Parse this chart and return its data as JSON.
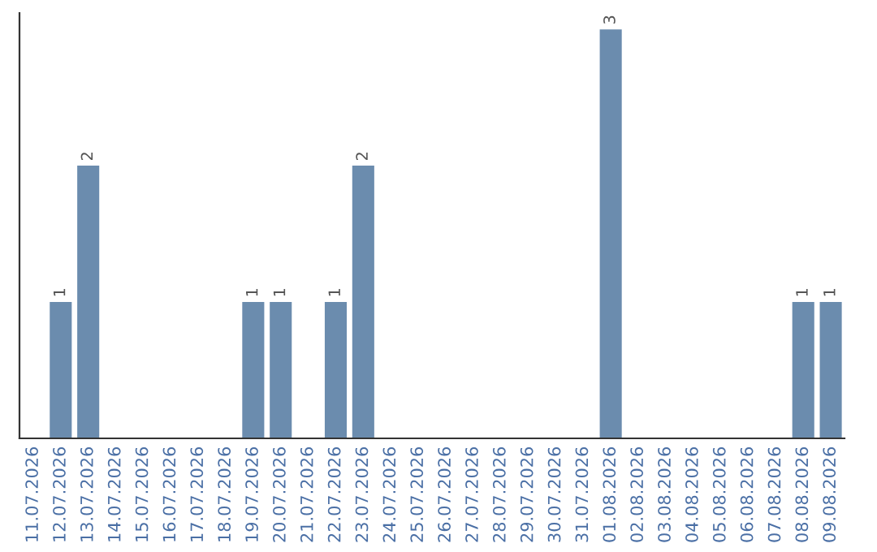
{
  "chart_data": {
    "type": "bar",
    "categories": [
      "11.07.2026",
      "12.07.2026",
      "13.07.2026",
      "14.07.2026",
      "15.07.2026",
      "16.07.2026",
      "17.07.2026",
      "18.07.2026",
      "19.07.2026",
      "20.07.2026",
      "21.07.2026",
      "22.07.2026",
      "23.07.2026",
      "24.07.2026",
      "25.07.2026",
      "26.07.2026",
      "27.07.2026",
      "28.07.2026",
      "29.07.2026",
      "30.07.2026",
      "31.07.2026",
      "01.08.2026",
      "02.08.2026",
      "03.08.2026",
      "04.08.2026",
      "05.08.2026",
      "06.08.2026",
      "07.08.2026",
      "08.08.2026",
      "09.08.2026"
    ],
    "values": [
      0,
      1,
      2,
      0,
      0,
      0,
      0,
      0,
      1,
      1,
      0,
      1,
      2,
      0,
      0,
      0,
      0,
      0,
      0,
      0,
      0,
      3,
      0,
      0,
      0,
      0,
      0,
      0,
      1,
      1
    ],
    "value_labels": [
      null,
      "1",
      "2",
      null,
      null,
      null,
      null,
      null,
      "1",
      "1",
      null,
      "1",
      "2",
      null,
      null,
      null,
      null,
      null,
      null,
      null,
      null,
      "3",
      null,
      null,
      null,
      null,
      null,
      null,
      "1",
      "1"
    ],
    "color": "#6b8cae",
    "tick_labels": "x",
    "grid": false
  }
}
